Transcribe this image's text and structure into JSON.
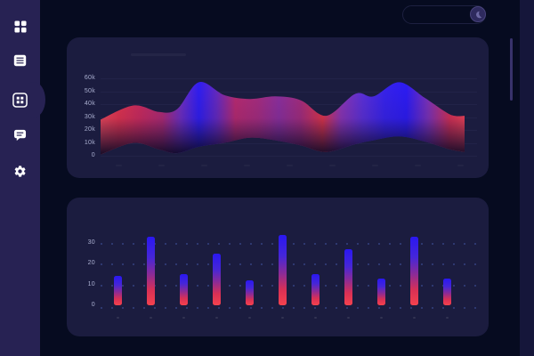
{
  "app": {
    "colors": {
      "page_bg": "#060b20",
      "sidebar_bg": "#272253",
      "panel_bg": "#1b1c3f",
      "strip_bg": "#15163a",
      "scrollbar": "#38326b",
      "icon_color": "#ffffff",
      "tick_label": "#a9aecf",
      "grid_dot": "#5f82eb",
      "accent_blue": "#2a17f2",
      "accent_red": "#ef3b4e"
    }
  },
  "sidebar": {
    "items": [
      {
        "id": "dashboard",
        "icon": "grid-icon",
        "active": false
      },
      {
        "id": "documents",
        "icon": "document-icon",
        "active": false
      },
      {
        "id": "charts",
        "icon": "table-grid-icon",
        "active": true
      },
      {
        "id": "messages",
        "icon": "chat-icon",
        "active": false
      },
      {
        "id": "settings",
        "icon": "gear-icon",
        "active": false
      }
    ]
  },
  "header": {
    "search_value": "",
    "search_placeholder": "",
    "avatar_icon": "moon-icon"
  },
  "chart_data": [
    {
      "type": "area",
      "title": "",
      "style": "fluid stream area, blue at high peaks fading through purple to red in low regions, bottom fades into dark panel",
      "ylim": [
        0,
        60000
      ],
      "ytick_labels": [
        "60k",
        "50k",
        "40k",
        "30k",
        "20k",
        "10k",
        "0"
      ],
      "ytick_values_k": [
        60,
        50,
        40,
        30,
        20,
        10,
        0
      ],
      "xtick_labels": [],
      "legend": null,
      "grid": "faint horizontal lines at each y tick",
      "points_format": "[x_percent_of_plot_width, top_edge_value_k, bottom_edge_value_k]",
      "points": [
        [
          0,
          28,
          1
        ],
        [
          9,
          39,
          10
        ],
        [
          16,
          34,
          5
        ],
        [
          21,
          36,
          2
        ],
        [
          27,
          57,
          7
        ],
        [
          34,
          47,
          10
        ],
        [
          41,
          44,
          14
        ],
        [
          48,
          46,
          12
        ],
        [
          55,
          43,
          8
        ],
        [
          62,
          31,
          3
        ],
        [
          70,
          48,
          9
        ],
        [
          75,
          46,
          12
        ],
        [
          82,
          57,
          15
        ],
        [
          89,
          45,
          11
        ],
        [
          96,
          32,
          5
        ],
        [
          100,
          31,
          3
        ]
      ],
      "gradient_stops": [
        [
          0,
          "#f0475a"
        ],
        [
          5,
          "#e2334e"
        ],
        [
          11,
          "#cb2a5e"
        ],
        [
          17,
          "#b02a74"
        ],
        [
          22,
          "#6f2ec2"
        ],
        [
          27,
          "#2f1df2"
        ],
        [
          32,
          "#6629c0"
        ],
        [
          37,
          "#b82a70"
        ],
        [
          43,
          "#a82c7e"
        ],
        [
          49,
          "#8c2f9e"
        ],
        [
          55,
          "#a42c7c"
        ],
        [
          61,
          "#e03449"
        ],
        [
          66,
          "#8c35b4"
        ],
        [
          72,
          "#5b2fd8"
        ],
        [
          78,
          "#3722ec"
        ],
        [
          84,
          "#2c1bf4"
        ],
        [
          90,
          "#7c31b8"
        ],
        [
          96,
          "#d63054"
        ],
        [
          100,
          "#ef4156"
        ]
      ]
    },
    {
      "type": "bar",
      "title": "",
      "ylim": [
        0,
        35
      ],
      "ytick_labels": [
        "30",
        "20",
        "10",
        "0"
      ],
      "ytick_values": [
        30,
        20,
        10,
        0
      ],
      "categories": [],
      "values": [
        14,
        33,
        15,
        25,
        12,
        34,
        15,
        27,
        13,
        33,
        13
      ],
      "grid": "dotted rows at each y tick level",
      "bar_gradient": [
        "#2a17f2",
        "#4526d8",
        "#8c2b96",
        "#d93055",
        "#f4424e"
      ]
    }
  ]
}
